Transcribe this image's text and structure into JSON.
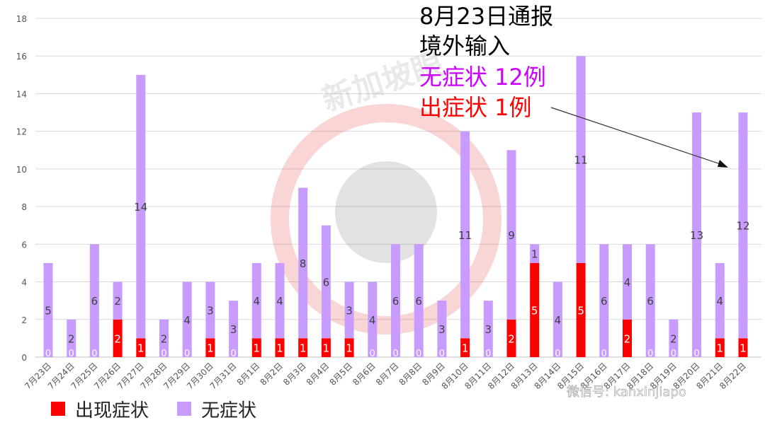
{
  "chart_data": {
    "type": "bar",
    "stacked": true,
    "categories": [
      "7月23日",
      "7月24日",
      "7月25日",
      "7月26日",
      "7月27日",
      "7月28日",
      "7月29日",
      "7月30日",
      "7月31日",
      "8月1日",
      "8月2日",
      "8月3日",
      "8月4日",
      "8月5日",
      "8月6日",
      "8月7日",
      "8月8日",
      "8月9日",
      "8月10日",
      "8月11日",
      "8月12日",
      "8月13日",
      "8月14日",
      "8月15日",
      "8月16日",
      "8月17日",
      "8月18日",
      "8月19日",
      "8月20日",
      "8月21日",
      "8月22日"
    ],
    "series": [
      {
        "name": "出现症状",
        "color": "#ff0000",
        "values": [
          0,
          0,
          0,
          2,
          1,
          0,
          0,
          1,
          0,
          1,
          1,
          1,
          1,
          1,
          0,
          0,
          0,
          0,
          1,
          0,
          2,
          5,
          0,
          5,
          0,
          2,
          0,
          0,
          0,
          1,
          1
        ]
      },
      {
        "name": "无症状",
        "color": "#c89cff",
        "values": [
          5,
          2,
          6,
          2,
          14,
          2,
          4,
          3,
          3,
          4,
          4,
          8,
          6,
          3,
          4,
          6,
          6,
          3,
          11,
          3,
          9,
          1,
          4,
          11,
          6,
          4,
          6,
          2,
          13,
          4,
          12
        ]
      }
    ],
    "ylim": [
      0,
      18
    ],
    "yticks": [
      0,
      2,
      4,
      6,
      8,
      10,
      12,
      14,
      16,
      18
    ],
    "grid": true,
    "legend_position": "bottom-left"
  },
  "annotation": {
    "line1": "8月23日通报",
    "line2": "境外输入",
    "line3": "无症状 12例",
    "line4": "出症状 1例",
    "line3_color": "#cc00ff",
    "line4_color": "#ff0000"
  },
  "legend": {
    "symptomatic_label": "出现症状",
    "asymptomatic_label": "无症状"
  },
  "watermark": {
    "text": "新加坡眼",
    "footer": "微信号: kanxinjiapo"
  }
}
